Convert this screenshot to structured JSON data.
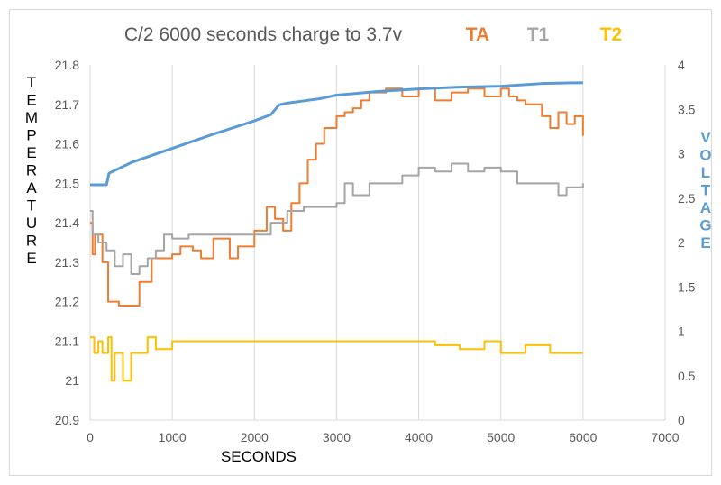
{
  "chart_data": {
    "type": "line",
    "title": "C/2 6000 seconds charge to 3.7v",
    "xlabel": "SECONDS",
    "ylabel": "TEMPERATURE",
    "y2label": "VOLTAGE",
    "xlim": [
      0,
      7000
    ],
    "ylim": [
      20.9,
      21.8
    ],
    "y2lim": [
      0,
      4
    ],
    "xticks": [
      "0",
      "1000",
      "2000",
      "3000",
      "4000",
      "5000",
      "6000",
      "7000"
    ],
    "yticks": [
      "20.9",
      "21",
      "21.1",
      "21.2",
      "21.3",
      "21.4",
      "21.5",
      "21.6",
      "21.7",
      "21.8"
    ],
    "y2ticks": [
      "0",
      "0.5",
      "1",
      "1.5",
      "2",
      "2.5",
      "3",
      "3.5",
      "4"
    ],
    "grid": "vertical",
    "legend": "top",
    "series": [
      {
        "name": "TA",
        "color": "#ed7d31",
        "axis": "left",
        "x": [
          0,
          30,
          60,
          150,
          220,
          350,
          600,
          750,
          900,
          1000,
          1100,
          1250,
          1350,
          1500,
          1700,
          1800,
          2000,
          2150,
          2250,
          2350,
          2450,
          2550,
          2650,
          2750,
          2850,
          3000,
          3100,
          3200,
          3300,
          3400,
          3600,
          3800,
          4000,
          4200,
          4400,
          4600,
          4800,
          5000,
          5100,
          5200,
          5300,
          5400,
          5500,
          5600,
          5700,
          5800,
          5900,
          6000
        ],
        "values": [
          21.4,
          21.32,
          21.37,
          21.3,
          21.2,
          21.19,
          21.25,
          21.31,
          21.31,
          21.32,
          21.34,
          21.33,
          21.31,
          21.36,
          21.31,
          21.34,
          21.38,
          21.44,
          21.41,
          21.38,
          21.45,
          21.5,
          21.56,
          21.6,
          21.64,
          21.67,
          21.68,
          21.69,
          21.71,
          21.73,
          21.74,
          21.72,
          21.74,
          21.71,
          21.73,
          21.74,
          21.72,
          21.74,
          21.72,
          21.71,
          21.7,
          21.7,
          21.67,
          21.64,
          21.68,
          21.65,
          21.67,
          21.62
        ]
      },
      {
        "name": "T1",
        "color": "#a5a5a5",
        "axis": "left",
        "x": [
          0,
          30,
          100,
          200,
          300,
          400,
          500,
          600,
          700,
          800,
          900,
          1000,
          1200,
          1400,
          1600,
          1800,
          2000,
          2200,
          2400,
          2600,
          2800,
          3000,
          3100,
          3200,
          3400,
          3600,
          3800,
          4000,
          4200,
          4400,
          4600,
          4800,
          5000,
          5200,
          5400,
          5600,
          5700,
          5800,
          6000
        ],
        "values": [
          21.43,
          21.37,
          21.35,
          21.33,
          21.29,
          21.32,
          21.27,
          21.29,
          21.31,
          21.33,
          21.37,
          21.36,
          21.37,
          21.37,
          21.37,
          21.37,
          21.37,
          21.4,
          21.43,
          21.44,
          21.44,
          21.45,
          21.5,
          21.47,
          21.5,
          21.5,
          21.52,
          21.54,
          21.53,
          21.55,
          21.53,
          21.54,
          21.53,
          21.5,
          21.5,
          21.5,
          21.47,
          21.49,
          21.5
        ]
      },
      {
        "name": "T2",
        "color": "#ffc000",
        "axis": "left",
        "x": [
          0,
          50,
          100,
          150,
          220,
          260,
          300,
          350,
          400,
          500,
          600,
          700,
          800,
          1000,
          1500,
          2000,
          2500,
          3000,
          3500,
          4000,
          4200,
          4500,
          4800,
          5000,
          5300,
          5600,
          6000
        ],
        "values": [
          21.11,
          21.07,
          21.1,
          21.07,
          21.11,
          21.0,
          21.07,
          21.07,
          21.0,
          21.07,
          21.07,
          21.11,
          21.08,
          21.1,
          21.1,
          21.1,
          21.1,
          21.1,
          21.1,
          21.1,
          21.09,
          21.08,
          21.1,
          21.07,
          21.09,
          21.07,
          21.07
        ]
      },
      {
        "name": "Voltage",
        "color": "#5b9bd5",
        "axis": "right",
        "x": [
          0,
          200,
          230,
          500,
          1000,
          1500,
          2000,
          2200,
          2300,
          2400,
          2800,
          3000,
          3500,
          4000,
          4500,
          5000,
          5500,
          6000
        ],
        "values": [
          2.65,
          2.65,
          2.78,
          2.9,
          3.06,
          3.22,
          3.37,
          3.44,
          3.55,
          3.57,
          3.62,
          3.66,
          3.7,
          3.73,
          3.75,
          3.76,
          3.79,
          3.8
        ]
      }
    ]
  }
}
